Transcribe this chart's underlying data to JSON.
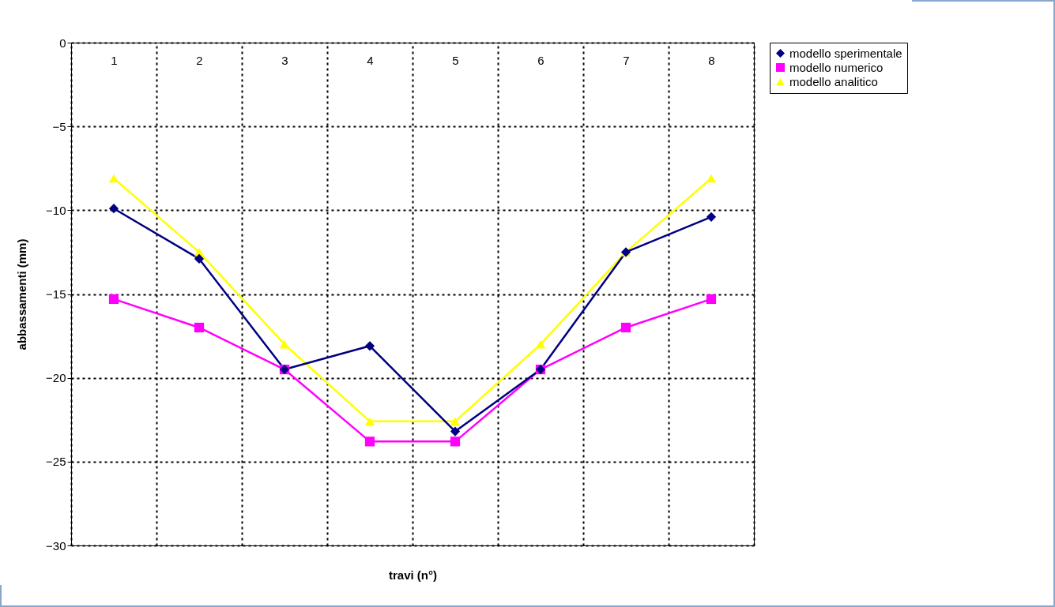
{
  "chart_data": {
    "type": "line",
    "xlabel": "travi (n°)",
    "ylabel": "abbassamenti (mm)",
    "categories": [
      "1",
      "2",
      "3",
      "4",
      "5",
      "6",
      "7",
      "8"
    ],
    "series": [
      {
        "name": "modello sperimentale",
        "color": "#000080",
        "marker": "diamond",
        "values": [
          -9.9,
          -12.9,
          -19.5,
          -18.1,
          -23.2,
          -19.5,
          -12.5,
          -10.4
        ]
      },
      {
        "name": "modello numerico",
        "color": "#ff00ff",
        "marker": "square",
        "values": [
          -15.3,
          -17.0,
          -19.5,
          -23.8,
          -23.8,
          -19.5,
          -17.0,
          -15.3
        ]
      },
      {
        "name": "modello analitico",
        "color": "#ffff00",
        "marker": "triangle",
        "values": [
          -8.1,
          -12.5,
          -18.0,
          -22.6,
          -22.6,
          -18.0,
          -12.5,
          -8.1
        ]
      }
    ],
    "ylim": [
      -30,
      0
    ],
    "yticks": [
      0,
      -5,
      -10,
      -15,
      -20,
      -25,
      -30
    ],
    "grid": true,
    "legend": "right"
  }
}
